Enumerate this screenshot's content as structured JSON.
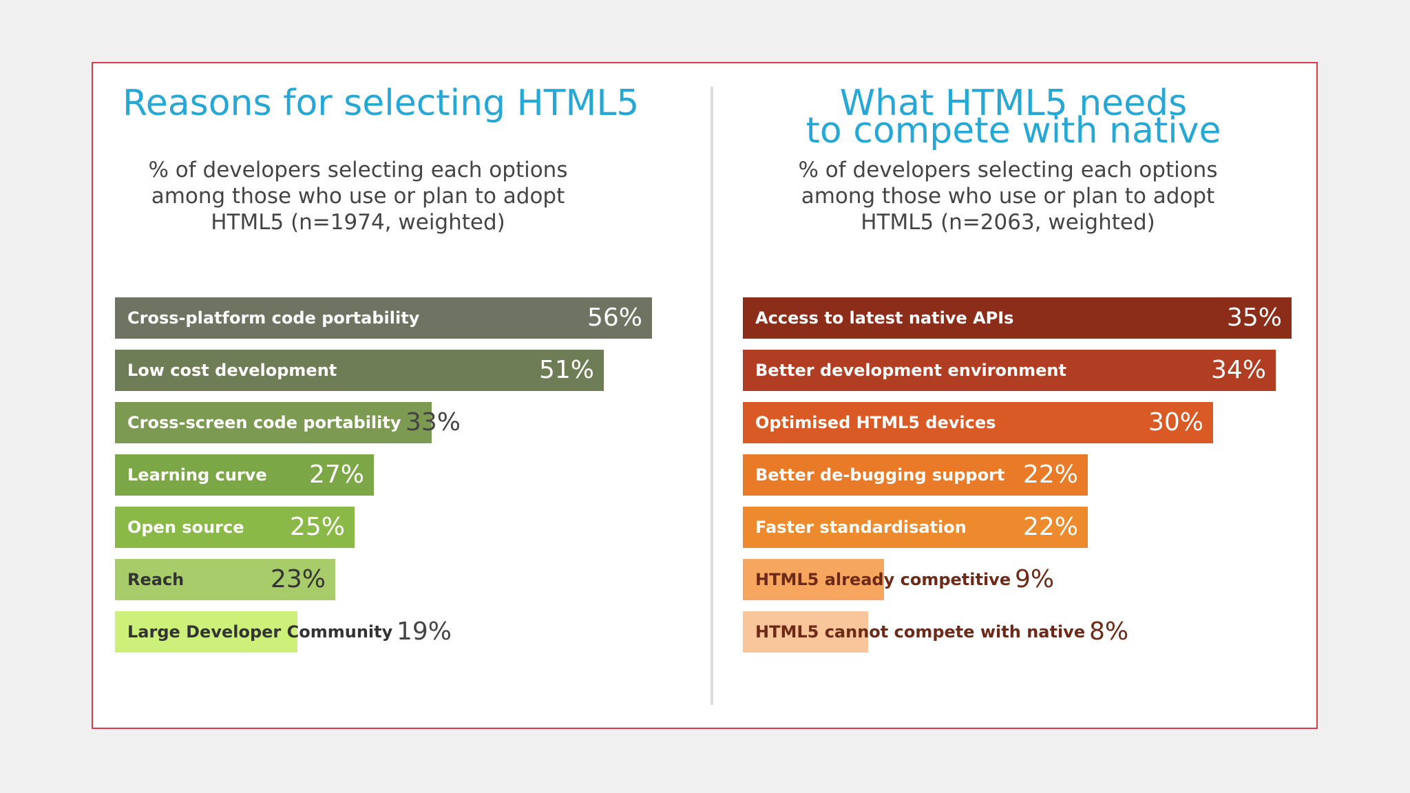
{
  "chart_data": [
    {
      "type": "bar",
      "orientation": "horizontal",
      "title": "Reasons for selecting HTML5",
      "subtitle": [
        "% of developers selecting each options",
        "among those who use or plan to adopt",
        "HTML5 (n=1974, weighted)"
      ],
      "categories": [
        "Cross-platform code portability",
        "Low cost development",
        "Cross-screen code portability",
        "Learning curve",
        "Open source",
        "Reach",
        "Large Developer Community"
      ],
      "values": [
        56,
        51,
        33,
        27,
        25,
        23,
        19
      ],
      "value_labels": [
        "56%",
        "51%",
        "33%",
        "27%",
        "25%",
        "23%",
        "19%"
      ],
      "colors": [
        "#6e7461",
        "#6f7d57",
        "#7c9a52",
        "#7ca747",
        "#8ab948",
        "#a9cc6b",
        "#ccf07a"
      ],
      "label_colors": [
        "#ffffff",
        "#ffffff",
        "#ffffff",
        "#ffffff",
        "#ffffff",
        "#333333",
        "#333333"
      ],
      "value_colors": [
        "#ffffff",
        "#ffffff",
        "#ffffff",
        "#ffffff",
        "#ffffff",
        "#333333",
        "#444444"
      ],
      "xlim": [
        0,
        56
      ]
    },
    {
      "type": "bar",
      "orientation": "horizontal",
      "title": [
        "What HTML5 needs",
        "to compete with native"
      ],
      "subtitle": [
        "% of developers selecting each options",
        "among those who use or plan to adopt",
        "HTML5 (n=2063, weighted)"
      ],
      "categories": [
        "Access to latest native APIs",
        "Better development environment",
        "Optimised HTML5 devices",
        "Better de-bugging support",
        "Faster standardisation",
        "HTML5 already competitive",
        "HTML5 cannot compete with native"
      ],
      "values": [
        35,
        34,
        30,
        22,
        22,
        9,
        8
      ],
      "value_labels": [
        "35%",
        "34%",
        "30%",
        "22%",
        "22%",
        "9%",
        "8%"
      ],
      "colors": [
        "#8c2d1a",
        "#b13e22",
        "#d95a24",
        "#e97a28",
        "#ee8a2e",
        "#f6a65e",
        "#f9c59b"
      ],
      "label_colors": [
        "#ffffff",
        "#ffffff",
        "#ffffff",
        "#ffffff",
        "#ffffff",
        "#6e2a18",
        "#6e2a18"
      ],
      "value_colors": [
        "#ffffff",
        "#ffffff",
        "#ffffff",
        "#ffffff",
        "#ffffff",
        "#6e2a18",
        "#6e2a18"
      ],
      "xlim": [
        0,
        35
      ]
    }
  ]
}
